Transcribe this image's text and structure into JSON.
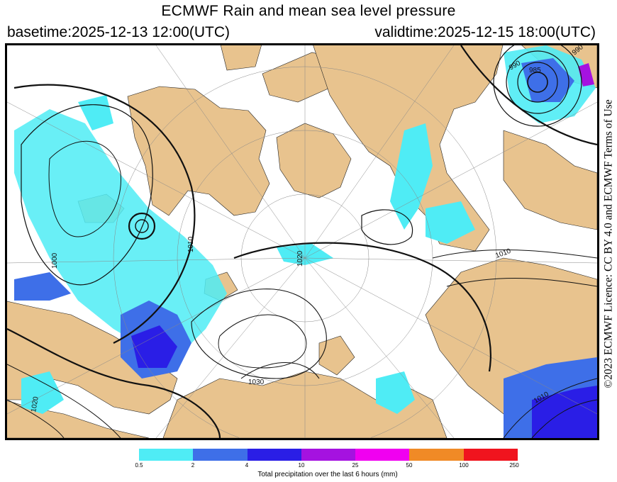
{
  "title": "ECMWF Rain and mean sea level pressure",
  "basetime": "basetime:2025-12-13 12:00(UTC)",
  "validtime": "validtime:2025-12-15 18:00(UTC)",
  "licence": "©2023 ECMWF Licence: CC BY 4.0 and ECMWF Terms of Use",
  "map": {
    "isobar_labels": [
      "1030",
      "1020",
      "1010",
      "1000",
      "1010",
      "1020",
      "990",
      "985",
      "990",
      "1010"
    ],
    "colors": {
      "land": "#e8c38e",
      "sea": "#ffffff",
      "isobar": "#111111",
      "grid": "#888888"
    }
  },
  "legend": {
    "label": "Total precipitation over the last 6 hours (mm)",
    "ticks": [
      "0.5",
      "2",
      "4",
      "10",
      "25",
      "50",
      "100",
      "250"
    ],
    "colors": [
      "#4fecf5",
      "#3e6fe8",
      "#2a1ee6",
      "#a512e0",
      "#f000f0",
      "#f08a26",
      "#f0141e"
    ]
  }
}
